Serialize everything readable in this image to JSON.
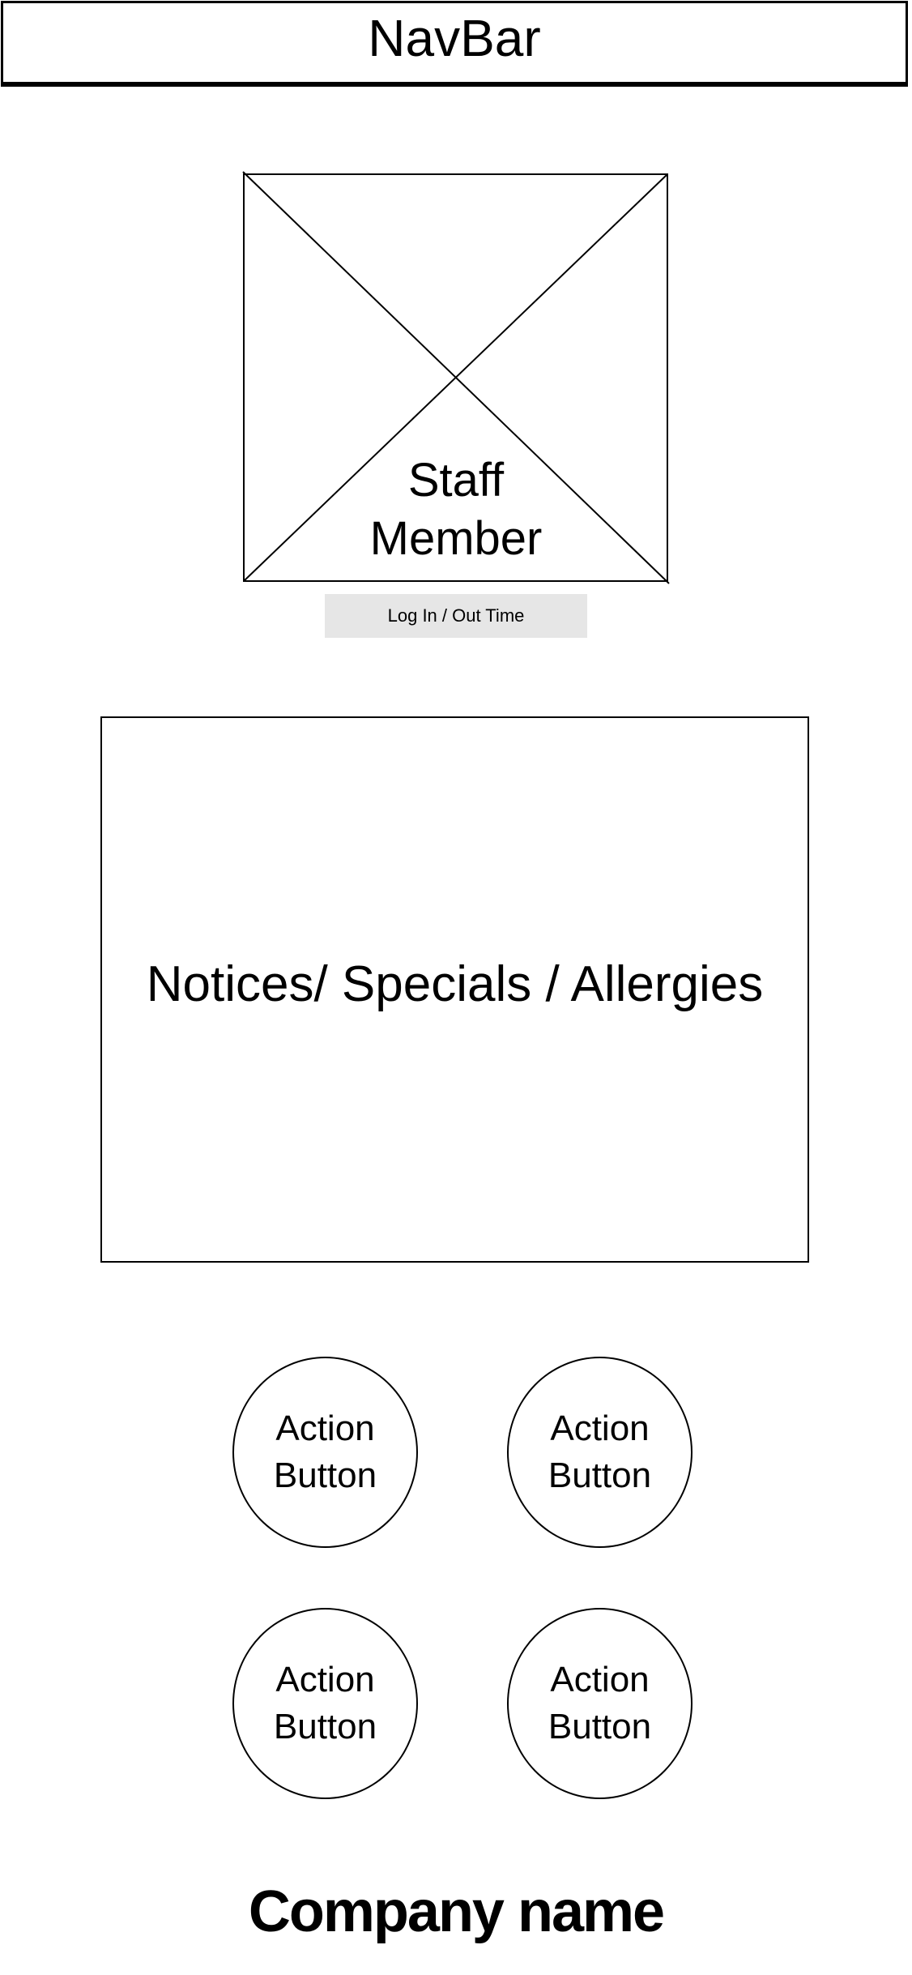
{
  "navbar": {
    "title": "NavBar"
  },
  "staff": {
    "image_label": "Staff\nMember",
    "log_button_label": "Log In / Out Time"
  },
  "notices": {
    "text": "Notices/ Specials / Allergies"
  },
  "actions": {
    "buttons": [
      {
        "label": "Action\nButton"
      },
      {
        "label": "Action\nButton"
      },
      {
        "label": "Action\nButton"
      },
      {
        "label": "Action\nButton"
      }
    ]
  },
  "footer": {
    "company_name": "Company name"
  }
}
